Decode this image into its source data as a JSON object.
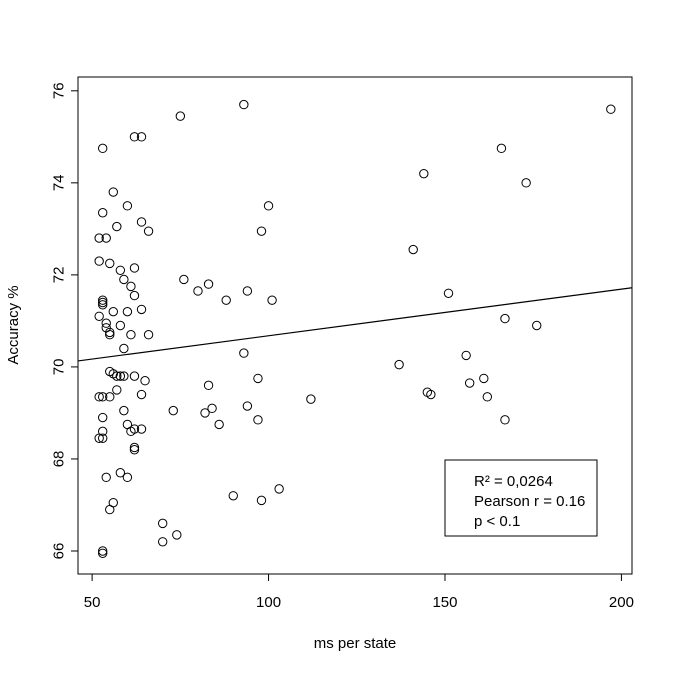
{
  "chart_data": {
    "type": "scatter",
    "xlabel": "ms per state",
    "ylabel": "Accuracy %",
    "xlim": [
      46,
      203
    ],
    "ylim": [
      65.5,
      76.3
    ],
    "x_ticks": [
      50,
      100,
      150,
      200
    ],
    "y_ticks": [
      66,
      68,
      70,
      72,
      74,
      76
    ],
    "grid": false,
    "legend_position": "bottom-right",
    "legend_lines": [
      "R² = 0,0264",
      "Pearson r = 0.16",
      "p < 0.1"
    ],
    "marker_color": "#000000",
    "regression_line": {
      "x": [
        46,
        203
      ],
      "y": [
        70.13,
        71.72
      ]
    },
    "points": [
      [
        53,
        74.75
      ],
      [
        53,
        71.45
      ],
      [
        53,
        71.35
      ],
      [
        53,
        71.4
      ],
      [
        53,
        69.35
      ],
      [
        53,
        68.9
      ],
      [
        53,
        68.6
      ],
      [
        52,
        72.8
      ],
      [
        52,
        72.3
      ],
      [
        52,
        71.1
      ],
      [
        52,
        69.35
      ],
      [
        52,
        68.45
      ],
      [
        53,
        68.45
      ],
      [
        53,
        73.35
      ],
      [
        53,
        66.0
      ],
      [
        53,
        65.95
      ],
      [
        54,
        72.8
      ],
      [
        54,
        70.95
      ],
      [
        54,
        70.85
      ],
      [
        54,
        67.6
      ],
      [
        55,
        70.75
      ],
      [
        55,
        70.7
      ],
      [
        55,
        72.25
      ],
      [
        55,
        69.9
      ],
      [
        55,
        69.35
      ],
      [
        55,
        66.9
      ],
      [
        56,
        73.8
      ],
      [
        56,
        71.2
      ],
      [
        56,
        69.85
      ],
      [
        56,
        67.05
      ],
      [
        57,
        73.05
      ],
      [
        57,
        69.8
      ],
      [
        57,
        69.5
      ],
      [
        58,
        72.1
      ],
      [
        58,
        70.9
      ],
      [
        58,
        69.8
      ],
      [
        58,
        67.7
      ],
      [
        59,
        71.9
      ],
      [
        59,
        70.4
      ],
      [
        59,
        69.8
      ],
      [
        59,
        69.05
      ],
      [
        60,
        73.5
      ],
      [
        60,
        71.2
      ],
      [
        60,
        68.75
      ],
      [
        60,
        67.6
      ],
      [
        61,
        70.7
      ],
      [
        61,
        71.75
      ],
      [
        61,
        68.6
      ],
      [
        62,
        75.0
      ],
      [
        62,
        72.15
      ],
      [
        62,
        71.55
      ],
      [
        62,
        69.8
      ],
      [
        62,
        68.65
      ],
      [
        62,
        68.25
      ],
      [
        62,
        68.2
      ],
      [
        64,
        75.0
      ],
      [
        64,
        73.15
      ],
      [
        64,
        71.25
      ],
      [
        64,
        69.4
      ],
      [
        64,
        68.65
      ],
      [
        65,
        69.7
      ],
      [
        66,
        70.7
      ],
      [
        66,
        72.95
      ],
      [
        70,
        66.6
      ],
      [
        70,
        66.2
      ],
      [
        73,
        69.05
      ],
      [
        74,
        66.35
      ],
      [
        75,
        75.45
      ],
      [
        76,
        71.9
      ],
      [
        80,
        71.65
      ],
      [
        82,
        69.0
      ],
      [
        83,
        71.8
      ],
      [
        83,
        69.6
      ],
      [
        84,
        69.1
      ],
      [
        86,
        68.75
      ],
      [
        88,
        71.45
      ],
      [
        90,
        67.2
      ],
      [
        93,
        75.7
      ],
      [
        93,
        70.3
      ],
      [
        94,
        71.65
      ],
      [
        94,
        69.15
      ],
      [
        97,
        69.75
      ],
      [
        97,
        68.85
      ],
      [
        98,
        72.95
      ],
      [
        98,
        67.1
      ],
      [
        100,
        73.5
      ],
      [
        101,
        71.45
      ],
      [
        103,
        67.35
      ],
      [
        112,
        69.3
      ],
      [
        137,
        70.05
      ],
      [
        141,
        72.55
      ],
      [
        144,
        74.2
      ],
      [
        145,
        69.45
      ],
      [
        146,
        69.4
      ],
      [
        151,
        71.6
      ],
      [
        156,
        70.25
      ],
      [
        157,
        69.65
      ],
      [
        161,
        69.75
      ],
      [
        162,
        69.35
      ],
      [
        166,
        74.75
      ],
      [
        167,
        71.05
      ],
      [
        167,
        68.85
      ],
      [
        173,
        74.0
      ],
      [
        176,
        70.9
      ],
      [
        197,
        75.6
      ]
    ]
  }
}
